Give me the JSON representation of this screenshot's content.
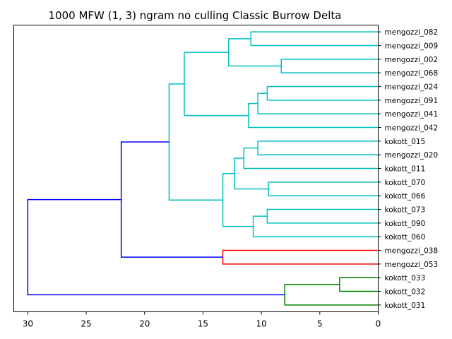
{
  "chart_data": {
    "type": "dendrogram",
    "title": "1000 MFW (1, 3) ngram no culling  Classic Burrow Delta",
    "orientation": "left",
    "xlim": [
      31.2,
      0
    ],
    "xticks": [
      30,
      25,
      20,
      15,
      10,
      5,
      0
    ],
    "leaves": [
      "mengozzi_082",
      "mengozzi_009",
      "mengozzi_002",
      "mengozzi_068",
      "mengozzi_024",
      "mengozzi_091",
      "mengozzi_041",
      "mengozzi_042",
      "kokott_015",
      "mengozzi_020",
      "kokott_011",
      "kokott_070",
      "kokott_066",
      "kokott_073",
      "kokott_090",
      "kokott_060",
      "mengozzi_038",
      "mengozzi_053",
      "kokott_033",
      "kokott_032",
      "kokott_031"
    ],
    "colors": {
      "cyan": "#00bfbf",
      "red": "#ff0000",
      "green": "#008000",
      "blue": "#0000ff"
    },
    "links": [
      {
        "a": "mengozzi_082",
        "b": "mengozzi_009",
        "h": 10.9,
        "color": "cyan"
      },
      {
        "a": "mengozzi_002",
        "b": "mengozzi_068",
        "h": 8.3,
        "color": "cyan"
      },
      {
        "a": 0,
        "b": 1,
        "h": 12.8,
        "color": "cyan"
      },
      {
        "a": "mengozzi_024",
        "b": "mengozzi_091",
        "h": 9.5,
        "color": "cyan"
      },
      {
        "a": 3,
        "b": "mengozzi_041",
        "h": 10.3,
        "color": "cyan"
      },
      {
        "a": 4,
        "b": "mengozzi_042",
        "h": 11.1,
        "color": "cyan"
      },
      {
        "a": 2,
        "b": 5,
        "h": 16.6,
        "color": "cyan"
      },
      {
        "a": "kokott_015",
        "b": "mengozzi_020",
        "h": 10.3,
        "color": "cyan"
      },
      {
        "a": 7,
        "b": "kokott_011",
        "h": 11.5,
        "color": "cyan"
      },
      {
        "a": "kokott_070",
        "b": "kokott_066",
        "h": 9.4,
        "color": "cyan"
      },
      {
        "a": 8,
        "b": 9,
        "h": 12.3,
        "color": "cyan"
      },
      {
        "a": "kokott_073",
        "b": "kokott_090",
        "h": 9.5,
        "color": "cyan"
      },
      {
        "a": 11,
        "b": "kokott_060",
        "h": 10.7,
        "color": "cyan"
      },
      {
        "a": 10,
        "b": 12,
        "h": 13.3,
        "color": "cyan"
      },
      {
        "a": 6,
        "b": 13,
        "h": 17.9,
        "color": "cyan"
      },
      {
        "a": "mengozzi_038",
        "b": "mengozzi_053",
        "h": 13.3,
        "color": "red"
      },
      {
        "a": 14,
        "b": 15,
        "h": 22.0,
        "color": "blue"
      },
      {
        "a": "kokott_033",
        "b": "kokott_032",
        "h": 3.3,
        "color": "green"
      },
      {
        "a": 17,
        "b": "kokott_031",
        "h": 8.0,
        "color": "green"
      },
      {
        "a": 16,
        "b": 18,
        "h": 30.0,
        "color": "blue"
      }
    ]
  }
}
